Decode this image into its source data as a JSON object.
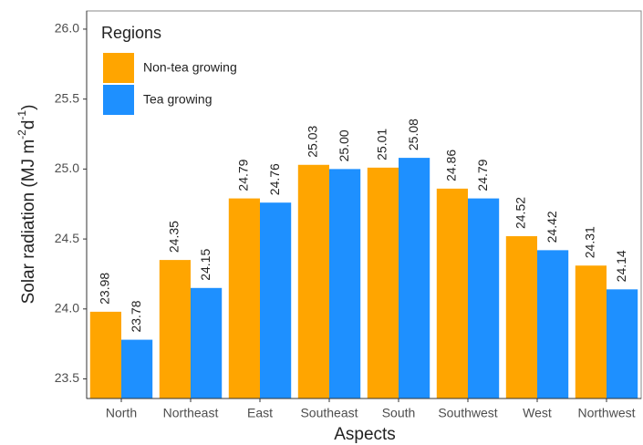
{
  "chart_data": {
    "type": "bar",
    "ylabel": [
      "Solar radiation (MJ m",
      "-2",
      "d",
      "-1",
      ")"
    ],
    "xlabel": "Aspects",
    "legend_title": "Regions",
    "legend_position": "top-left",
    "categories": [
      "North",
      "Northeast",
      "East",
      "Southeast",
      "South",
      "Southwest",
      "West",
      "Northwest"
    ],
    "series": [
      {
        "name": "Non-tea growing",
        "color": "#FFA500",
        "values": [
          23.98,
          24.35,
          24.79,
          25.03,
          25.01,
          24.86,
          24.52,
          24.31
        ],
        "value_labels": [
          "23.98",
          "24.35",
          "24.79",
          "25.03",
          "25.01",
          "24.86",
          "24.52",
          "24.31"
        ]
      },
      {
        "name": "Tea growing",
        "color": "#1E90FF",
        "values": [
          23.78,
          24.15,
          24.76,
          25.0,
          25.08,
          24.79,
          24.42,
          24.14
        ],
        "value_labels": [
          "23.78",
          "24.15",
          "24.76",
          "25.00",
          "25.08",
          "24.79",
          "24.42",
          "24.14"
        ]
      }
    ],
    "ylim": [
      23.36,
      26.13
    ],
    "yticks": [
      {
        "value": 23.5,
        "label": "23.5"
      },
      {
        "value": 24.0,
        "label": "24.0"
      },
      {
        "value": 24.5,
        "label": "24.5"
      },
      {
        "value": 25.0,
        "label": "25.0"
      },
      {
        "value": 25.5,
        "label": "25.5"
      },
      {
        "value": 26.0,
        "label": "26.0"
      }
    ],
    "grid": false
  }
}
